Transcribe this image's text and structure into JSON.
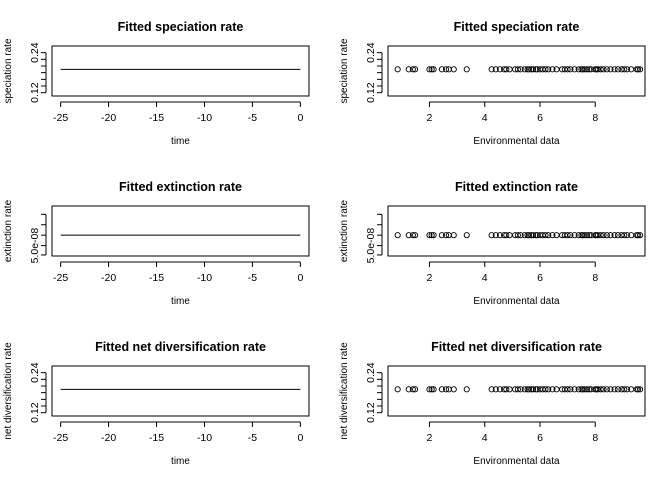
{
  "chart_data": [
    {
      "type": "line",
      "title": "Fitted speciation rate",
      "xlabel": "time",
      "ylabel": "speciation rate",
      "xlim": [
        -25.9,
        0.9
      ],
      "ylim": [
        0.11,
        0.26
      ],
      "xticks": [
        -25,
        -20,
        -15,
        -10,
        -5,
        0
      ],
      "xtick_labels": [
        "-25",
        "-20",
        "-15",
        "-10",
        "-5",
        "0"
      ],
      "yticks": [
        0.12,
        0.14,
        0.16,
        0.18,
        0.2,
        0.22,
        0.24
      ],
      "ytick_labels": [
        "0.12",
        "",
        "",
        "",
        "",
        "",
        "0.24"
      ],
      "series": [
        {
          "x": [
            -25,
            0
          ],
          "y": [
            0.19,
            0.19
          ]
        }
      ]
    },
    {
      "type": "scatter",
      "title": "Fitted speciation rate",
      "xlabel": "Environmental data",
      "ylabel": "speciation rate",
      "xlim": [
        0.5,
        9.8
      ],
      "ylim": [
        0.11,
        0.26
      ],
      "xticks": [
        2,
        4,
        6,
        8
      ],
      "xtick_labels": [
        "2",
        "4",
        "6",
        "8"
      ],
      "yticks": [
        0.12,
        0.14,
        0.16,
        0.18,
        0.2,
        0.22,
        0.24
      ],
      "ytick_labels": [
        "0.12",
        "",
        "",
        "",
        "",
        "",
        "0.24"
      ],
      "series": [
        {
          "x": [
            0.85,
            1.25,
            1.4,
            1.48,
            2.0,
            2.08,
            2.15,
            2.45,
            2.6,
            2.7,
            2.88,
            3.35,
            4.25,
            4.4,
            4.55,
            4.7,
            4.78,
            4.9,
            5.1,
            5.2,
            5.3,
            5.45,
            5.55,
            5.6,
            5.68,
            5.75,
            5.85,
            5.9,
            6.0,
            6.1,
            6.2,
            6.3,
            6.45,
            6.6,
            6.8,
            6.9,
            7.0,
            7.1,
            7.25,
            7.4,
            7.5,
            7.55,
            7.62,
            7.7,
            7.78,
            7.85,
            8.0,
            8.05,
            8.1,
            8.2,
            8.3,
            8.42,
            8.55,
            8.7,
            8.82,
            8.95,
            9.05,
            9.15,
            9.3,
            9.5,
            9.55,
            9.62
          ],
          "y": 0.19
        }
      ]
    },
    {
      "type": "line",
      "title": "Fitted extinction rate",
      "xlabel": "time",
      "ylabel": "extinction rate",
      "xlim": [
        -25.9,
        0.9
      ],
      "ylim": [
        0.0,
        2.4e-07
      ],
      "xticks": [
        -25,
        -20,
        -15,
        -10,
        -5,
        0
      ],
      "xtick_labels": [
        "-25",
        "-20",
        "-15",
        "-10",
        "-5",
        "0"
      ],
      "yticks": [
        5e-09,
        5e-08,
        1e-07,
        1.5e-07,
        2e-07
      ],
      "ytick_labels": [
        "",
        "5.0e-08",
        "",
        "",
        ""
      ],
      "series": [
        {
          "x": [
            -25,
            0
          ],
          "y": [
            1e-07,
            1e-07
          ]
        }
      ]
    },
    {
      "type": "scatter",
      "title": "Fitted extinction rate",
      "xlabel": "Environmental data",
      "ylabel": "extinction rate",
      "xlim": [
        0.5,
        9.8
      ],
      "ylim": [
        0.0,
        2.4e-07
      ],
      "xticks": [
        2,
        4,
        6,
        8
      ],
      "xtick_labels": [
        "2",
        "4",
        "6",
        "8"
      ],
      "yticks": [
        5e-09,
        5e-08,
        1e-07,
        1.5e-07,
        2e-07
      ],
      "ytick_labels": [
        "",
        "5.0e-08",
        "",
        "",
        ""
      ],
      "series": [
        {
          "x": [
            0.85,
            1.25,
            1.4,
            1.48,
            2.0,
            2.08,
            2.15,
            2.45,
            2.6,
            2.7,
            2.88,
            3.35,
            4.25,
            4.4,
            4.55,
            4.7,
            4.78,
            4.9,
            5.1,
            5.2,
            5.3,
            5.45,
            5.55,
            5.6,
            5.68,
            5.75,
            5.85,
            5.9,
            6.0,
            6.1,
            6.2,
            6.3,
            6.45,
            6.6,
            6.8,
            6.9,
            7.0,
            7.1,
            7.25,
            7.4,
            7.5,
            7.55,
            7.62,
            7.7,
            7.78,
            7.85,
            8.0,
            8.05,
            8.1,
            8.2,
            8.3,
            8.42,
            8.55,
            8.7,
            8.82,
            8.95,
            9.05,
            9.15,
            9.3,
            9.5,
            9.55,
            9.62
          ],
          "y": 1e-07
        }
      ]
    },
    {
      "type": "line",
      "title": "Fitted net diversification rate",
      "xlabel": "time",
      "ylabel": "net diversification rate",
      "xlim": [
        -25.9,
        0.9
      ],
      "ylim": [
        0.11,
        0.26
      ],
      "xticks": [
        -25,
        -20,
        -15,
        -10,
        -5,
        0
      ],
      "xtick_labels": [
        "-25",
        "-20",
        "-15",
        "-10",
        "-5",
        "0"
      ],
      "yticks": [
        0.12,
        0.14,
        0.16,
        0.18,
        0.2,
        0.22,
        0.24
      ],
      "ytick_labels": [
        "0.12",
        "",
        "",
        "",
        "",
        "",
        "0.24"
      ],
      "series": [
        {
          "x": [
            -25,
            0
          ],
          "y": [
            0.19,
            0.19
          ]
        }
      ]
    },
    {
      "type": "scatter",
      "title": "Fitted net diversification rate",
      "xlabel": "Environmental data",
      "ylabel": "net diversification rate",
      "xlim": [
        0.5,
        9.8
      ],
      "ylim": [
        0.11,
        0.26
      ],
      "xticks": [
        2,
        4,
        6,
        8
      ],
      "xtick_labels": [
        "2",
        "4",
        "6",
        "8"
      ],
      "yticks": [
        0.12,
        0.14,
        0.16,
        0.18,
        0.2,
        0.22,
        0.24
      ],
      "ytick_labels": [
        "0.12",
        "",
        "",
        "",
        "",
        "",
        "0.24"
      ],
      "series": [
        {
          "x": [
            0.85,
            1.25,
            1.4,
            1.48,
            2.0,
            2.08,
            2.15,
            2.45,
            2.6,
            2.7,
            2.88,
            3.35,
            4.25,
            4.4,
            4.55,
            4.7,
            4.78,
            4.9,
            5.1,
            5.2,
            5.3,
            5.45,
            5.55,
            5.6,
            5.68,
            5.75,
            5.85,
            5.9,
            6.0,
            6.1,
            6.2,
            6.3,
            6.45,
            6.6,
            6.8,
            6.9,
            7.0,
            7.1,
            7.25,
            7.4,
            7.5,
            7.55,
            7.62,
            7.7,
            7.78,
            7.85,
            8.0,
            8.05,
            8.1,
            8.2,
            8.3,
            8.42,
            8.55,
            8.7,
            8.82,
            8.95,
            9.05,
            9.15,
            9.3,
            9.5,
            9.55,
            9.62
          ],
          "y": 0.19
        }
      ]
    }
  ]
}
